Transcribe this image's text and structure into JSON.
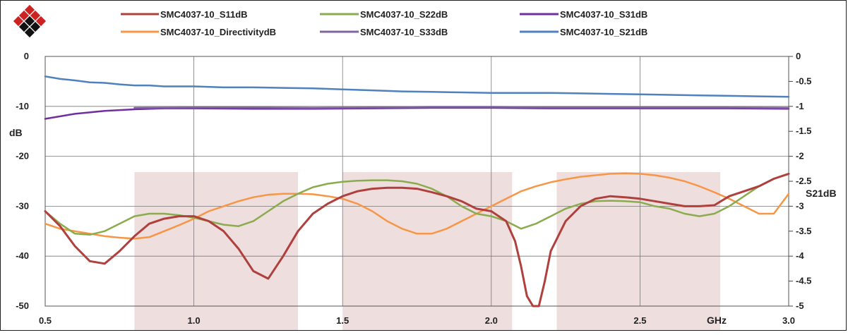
{
  "colors": {
    "S11": "#b0403d",
    "S22": "#8aac4e",
    "S31": "#7030a0",
    "Directivity": "#f79646",
    "S33": "#8064a2",
    "S21": "#4f81bd",
    "band": "#e8d3d3",
    "grid": "#777777"
  },
  "logo": {
    "icon": "red-black-diamond-logo-icon"
  },
  "legend": [
    {
      "label": "SMC4037-10_S11dB",
      "series": "S11"
    },
    {
      "label": "SMC4037-10_S22dB",
      "series": "S22"
    },
    {
      "label": "SMC4037-10_S31dB",
      "series": "S31"
    },
    {
      "label": "SMC4037-10_DirectivitydB",
      "series": "Directivity"
    },
    {
      "label": "SMC4037-10_S33dB",
      "series": "S33"
    },
    {
      "label": "SMC4037-10_S21dB",
      "series": "S21"
    }
  ],
  "chart_data": {
    "type": "line",
    "xlabel": "GHz",
    "ylabel": "dB",
    "y2label": "S21dB",
    "xlim": [
      0.5,
      3.0
    ],
    "ylim": [
      -50,
      0
    ],
    "y2lim": [
      -5,
      0
    ],
    "x_ticks": [
      "0.5",
      "1.0",
      "1.5",
      "2.0",
      "2.5",
      "3.0"
    ],
    "y_ticks": [
      "0",
      "-10",
      "-20",
      "-30",
      "-40",
      "-50"
    ],
    "y2_ticks": [
      "0",
      "-0.5",
      "-1",
      "-1.5",
      "-2",
      "-2.5",
      "-3",
      "-3.5",
      "-4",
      "-4.5",
      "-5"
    ],
    "grid": "vertical and horizontal",
    "legend_position": "top",
    "shaded_bands": [
      [
        0.8,
        1.35
      ],
      [
        1.5,
        2.07
      ],
      [
        2.22,
        2.77
      ]
    ],
    "series": [
      {
        "key": "S11",
        "name": "SMC4037-10_S11dB",
        "axis": "left",
        "x": [
          0.5,
          0.55,
          0.6,
          0.65,
          0.7,
          0.75,
          0.8,
          0.85,
          0.9,
          0.95,
          1.0,
          1.05,
          1.1,
          1.15,
          1.2,
          1.25,
          1.3,
          1.35,
          1.4,
          1.45,
          1.5,
          1.55,
          1.6,
          1.65,
          1.7,
          1.75,
          1.8,
          1.85,
          1.9,
          1.95,
          2.0,
          2.05,
          2.08,
          2.1,
          2.12,
          2.14,
          2.16,
          2.18,
          2.2,
          2.25,
          2.3,
          2.35,
          2.4,
          2.45,
          2.5,
          2.55,
          2.6,
          2.65,
          2.7,
          2.75,
          2.8,
          2.85,
          2.9,
          2.95,
          3.0
        ],
        "y": [
          -31,
          -34,
          -38,
          -41,
          -41.5,
          -39,
          -36,
          -33.5,
          -32.5,
          -32,
          -32,
          -33,
          -35,
          -38.5,
          -43,
          -44.5,
          -40,
          -35,
          -31.5,
          -29.5,
          -28,
          -27,
          -26.5,
          -26.3,
          -26.3,
          -26.5,
          -27.2,
          -28,
          -29,
          -30.5,
          -31,
          -33,
          -37,
          -42,
          -48,
          -51,
          -50,
          -45,
          -39,
          -33,
          -30,
          -28.5,
          -28,
          -28.2,
          -28.5,
          -29,
          -29.5,
          -30,
          -30,
          -29.8,
          -28,
          -27,
          -26,
          -24.5,
          -23.5
        ]
      },
      {
        "key": "S22",
        "name": "SMC4037-10_S22dB",
        "axis": "left",
        "x": [
          0.5,
          0.55,
          0.6,
          0.65,
          0.7,
          0.75,
          0.8,
          0.85,
          0.9,
          0.95,
          1.0,
          1.05,
          1.1,
          1.15,
          1.2,
          1.25,
          1.3,
          1.35,
          1.4,
          1.45,
          1.5,
          1.55,
          1.6,
          1.65,
          1.7,
          1.75,
          1.8,
          1.85,
          1.9,
          1.95,
          2.0,
          2.05,
          2.1,
          2.15,
          2.2,
          2.25,
          2.3,
          2.35,
          2.4,
          2.45,
          2.5,
          2.55,
          2.6,
          2.65,
          2.7,
          2.75,
          2.8,
          2.85,
          2.9,
          2.95,
          3.0
        ],
        "y": [
          -31,
          -33.5,
          -35.5,
          -35.7,
          -35,
          -33.5,
          -32,
          -31.5,
          -31.5,
          -31.8,
          -32.3,
          -33,
          -33.7,
          -34,
          -33,
          -31,
          -29,
          -27.5,
          -26.2,
          -25.5,
          -25.1,
          -24.9,
          -24.8,
          -24.8,
          -25,
          -25.5,
          -26.5,
          -28,
          -30,
          -31.5,
          -32,
          -33,
          -34.5,
          -33.5,
          -32,
          -30.5,
          -29.5,
          -29,
          -28.9,
          -29,
          -29.2,
          -30,
          -30.5,
          -31.5,
          -32,
          -31.5,
          -30,
          -28,
          -26,
          -24.5,
          -23.5
        ]
      },
      {
        "key": "Directivity",
        "name": "SMC4037-10_DirectivitydB",
        "axis": "left",
        "x": [
          0.5,
          0.55,
          0.6,
          0.65,
          0.7,
          0.75,
          0.8,
          0.85,
          0.9,
          0.95,
          1.0,
          1.05,
          1.1,
          1.15,
          1.2,
          1.25,
          1.3,
          1.35,
          1.4,
          1.45,
          1.5,
          1.55,
          1.6,
          1.65,
          1.7,
          1.75,
          1.8,
          1.85,
          1.9,
          1.95,
          2.0,
          2.05,
          2.1,
          2.15,
          2.2,
          2.25,
          2.3,
          2.35,
          2.4,
          2.45,
          2.5,
          2.55,
          2.6,
          2.65,
          2.7,
          2.75,
          2.8,
          2.85,
          2.9,
          2.95,
          3.0
        ],
        "y": [
          -33.5,
          -34.5,
          -35,
          -35.5,
          -36,
          -36.3,
          -36.5,
          -36.2,
          -35,
          -33.8,
          -32.5,
          -31,
          -30,
          -29,
          -28.2,
          -27.7,
          -27.5,
          -27.5,
          -27.6,
          -28,
          -28.5,
          -29.5,
          -31,
          -33,
          -34.5,
          -35.5,
          -35.5,
          -34.5,
          -33,
          -31.5,
          -30,
          -28.5,
          -27,
          -26,
          -25.2,
          -24.6,
          -24.1,
          -23.8,
          -23.5,
          -23.4,
          -23.5,
          -23.8,
          -24.3,
          -25,
          -26,
          -27.2,
          -28.5,
          -30,
          -31.5,
          -31.5,
          -27.5
        ]
      },
      {
        "key": "S31",
        "name": "SMC4037-10_S31dB",
        "axis": "left",
        "x": [
          0.5,
          0.6,
          0.7,
          0.8,
          0.9,
          1.0,
          1.2,
          1.4,
          1.6,
          1.8,
          2.0,
          2.2,
          2.4,
          2.6,
          2.8,
          3.0
        ],
        "y": [
          -12.5,
          -11.5,
          -10.9,
          -10.6,
          -10.4,
          -10.4,
          -10.5,
          -10.5,
          -10.4,
          -10.3,
          -10.3,
          -10.4,
          -10.4,
          -10.4,
          -10.4,
          -10.5
        ]
      },
      {
        "key": "S33",
        "name": "SMC4037-10_S33dB",
        "axis": "left",
        "x": [
          0.8,
          1.0,
          1.2,
          1.4,
          1.6,
          1.8,
          2.0,
          2.2,
          2.4,
          2.6,
          2.8,
          3.0
        ],
        "y": [
          -10.3,
          -10.2,
          -10.2,
          -10.3,
          -10.2,
          -10.1,
          -10.1,
          -10.2,
          -10.2,
          -10.2,
          -10.2,
          -10.3
        ]
      },
      {
        "key": "S21",
        "name": "SMC4037-10_S21dB",
        "axis": "right",
        "x": [
          0.5,
          0.55,
          0.6,
          0.65,
          0.7,
          0.75,
          0.8,
          0.85,
          0.9,
          0.95,
          1.0,
          1.1,
          1.2,
          1.3,
          1.4,
          1.5,
          1.6,
          1.7,
          1.8,
          1.9,
          2.0,
          2.1,
          2.2,
          2.3,
          2.4,
          2.5,
          2.6,
          2.7,
          2.8,
          2.9,
          3.0
        ],
        "y": [
          -0.4,
          -0.45,
          -0.48,
          -0.52,
          -0.53,
          -0.56,
          -0.58,
          -0.58,
          -0.6,
          -0.6,
          -0.6,
          -0.62,
          -0.62,
          -0.63,
          -0.64,
          -0.66,
          -0.68,
          -0.7,
          -0.71,
          -0.72,
          -0.73,
          -0.73,
          -0.73,
          -0.74,
          -0.75,
          -0.76,
          -0.77,
          -0.78,
          -0.79,
          -0.8,
          -0.81
        ]
      }
    ]
  }
}
